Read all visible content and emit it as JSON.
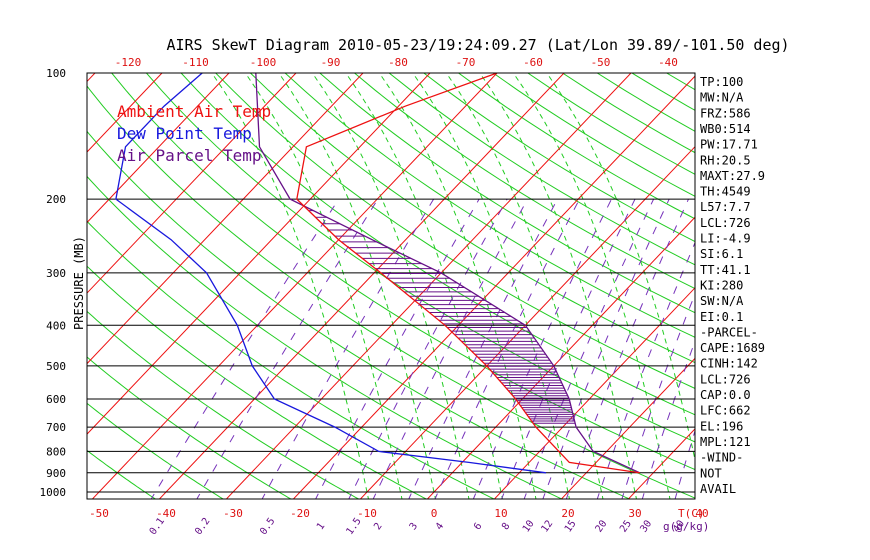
{
  "chart_data": {
    "type": "line",
    "title": "AIRS SkewT Diagram 2010-05-23/19:24:09.27 (Lat/Lon 39.89/-101.50 deg)",
    "ylabel": "PRESSURE (MB)",
    "xlabel_bottom_unit": "T(C)",
    "xlabel_mixing_unit": "g(g/kg)",
    "y_scale": "log",
    "ylim": [
      1000,
      100
    ],
    "xlim_bottom": [
      -50,
      40
    ],
    "xlim_top": [
      -120,
      -40
    ],
    "pressure_ticks": [
      100,
      200,
      300,
      400,
      500,
      600,
      700,
      800,
      900,
      1000
    ],
    "top_temp_ticks": [
      -120,
      -110,
      -100,
      -90,
      -80,
      -70,
      -60,
      -50,
      -40
    ],
    "bottom_temp_ticks": [
      -50,
      -40,
      -30,
      -20,
      -10,
      0,
      10,
      20,
      30,
      40
    ],
    "mixing_ratio_ticks": [
      "0.1",
      "0.2",
      "0.5",
      "1",
      "1.5",
      "2",
      "3",
      "4",
      "6",
      "8",
      "10",
      "12",
      "15",
      "20",
      "25",
      "30",
      "40"
    ],
    "legend": [
      {
        "name": "Ambient Air Temp",
        "color": "#ee1111"
      },
      {
        "name": "Dew Point Temp",
        "color": "#1818dd"
      },
      {
        "name": "Air Parcel Temp",
        "color": "#661188"
      }
    ],
    "series": [
      {
        "name": "Ambient Air Temp",
        "color": "#ee1111",
        "points": [
          {
            "p": 100,
            "t": -50
          },
          {
            "p": 120,
            "t": -59
          },
          {
            "p": 150,
            "t": -68
          },
          {
            "p": 200,
            "t": -62
          },
          {
            "p": 250,
            "t": -50
          },
          {
            "p": 300,
            "t": -39
          },
          {
            "p": 400,
            "t": -22
          },
          {
            "p": 500,
            "t": -10
          },
          {
            "p": 600,
            "t": -1
          },
          {
            "p": 700,
            "t": 6
          },
          {
            "p": 850,
            "t": 16
          },
          {
            "p": 900,
            "t": 28
          }
        ]
      },
      {
        "name": "Dew Point Temp",
        "color": "#1818dd",
        "points": [
          {
            "p": 100,
            "t": -94
          },
          {
            "p": 120,
            "t": -95
          },
          {
            "p": 150,
            "t": -95
          },
          {
            "p": 200,
            "t": -89
          },
          {
            "p": 250,
            "t": -75
          },
          {
            "p": 300,
            "t": -65
          },
          {
            "p": 400,
            "t": -53
          },
          {
            "p": 500,
            "t": -45
          },
          {
            "p": 600,
            "t": -37
          },
          {
            "p": 700,
            "t": -24
          },
          {
            "p": 800,
            "t": -14
          },
          {
            "p": 850,
            "t": 1
          },
          {
            "p": 900,
            "t": 14
          }
        ]
      },
      {
        "name": "Air Parcel Temp",
        "color": "#661188",
        "points": [
          {
            "p": 100,
            "t": -86
          },
          {
            "p": 150,
            "t": -75
          },
          {
            "p": 200,
            "t": -63
          },
          {
            "p": 250,
            "t": -45
          },
          {
            "p": 300,
            "t": -30
          },
          {
            "p": 400,
            "t": -10
          },
          {
            "p": 500,
            "t": 0
          },
          {
            "p": 600,
            "t": 7
          },
          {
            "p": 700,
            "t": 12
          },
          {
            "p": 800,
            "t": 18
          },
          {
            "p": 900,
            "t": 28
          }
        ]
      }
    ],
    "indices": [
      "TP:100",
      "MW:N/A",
      "FRZ:586",
      "WB0:514",
      "PW:17.71",
      "RH:20.5",
      "MAXT:27.9",
      "TH:4549",
      "L57:7.7",
      "LCL:726",
      "LI:-4.9",
      "SI:6.1",
      "TT:41.1",
      "KI:280",
      "SW:N/A",
      "EI:0.1",
      "-PARCEL-",
      "CAPE:1689",
      "CINH:142",
      "LCL:726",
      "CAP:0.0",
      "LFC:662",
      "EL:196",
      "MPL:121",
      "-WIND-",
      "NOT",
      "AVAIL"
    ]
  }
}
